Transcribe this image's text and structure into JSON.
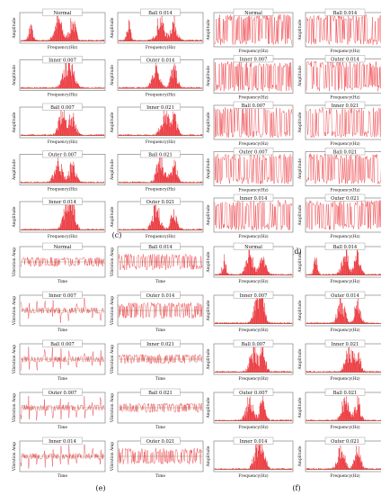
{
  "figure": {
    "panels": [
      {
        "id": "c",
        "label": "(c)",
        "xlabel": "Frequency(Hz)",
        "ylabel": "Amplitude",
        "kind": "spectrum",
        "plots": [
          "Normal",
          "Ball 0.014",
          "Inner 0.007",
          "Outer 0.014",
          "Ball 0.007",
          "Inner 0.021",
          "Outer 0.007",
          "Ball 0.021",
          "Inner 0.014",
          "Outer 0.021"
        ]
      },
      {
        "id": "d",
        "label": "(d)",
        "xlabel": "Frequency(Hz)",
        "ylabel": "Amplitude",
        "kind": "noise",
        "plots": [
          "Normal",
          "Ball 0.014",
          "Inner 0.007",
          "Outer 0.014",
          "Ball 0.007",
          "Inner 0.021",
          "Outer 0.007",
          "Ball 0.021",
          "Inner 0.014",
          "Outer 0.021"
        ]
      },
      {
        "id": "e",
        "label": "(e)",
        "xlabel": "Time",
        "ylabel": "Vibration Amp",
        "kind": "time",
        "plots": [
          "Normal",
          "Ball 0.014",
          "Inner 0.007",
          "Outer 0.014",
          "Ball 0.007",
          "Inner 0.021",
          "Outer 0.007",
          "Ball 0.021",
          "Inner 0.014",
          "Outer 0.021"
        ]
      },
      {
        "id": "f",
        "label": "(f)",
        "xlabel": "Frequency(Hz)",
        "ylabel": "Amplitude",
        "kind": "spectrum",
        "plots": [
          "Normal",
          "Ball 0.014",
          "Inner 0.007",
          "Outer 0.014",
          "Ball 0.007",
          "Inner 0.021",
          "Outer 0.007",
          "Ball 0.021",
          "Inner 0.014",
          "Outer 0.021"
        ]
      }
    ],
    "colors": {
      "signal": "#e8141b",
      "envelope": "#3a6b2a",
      "frame": "#555555"
    }
  }
}
